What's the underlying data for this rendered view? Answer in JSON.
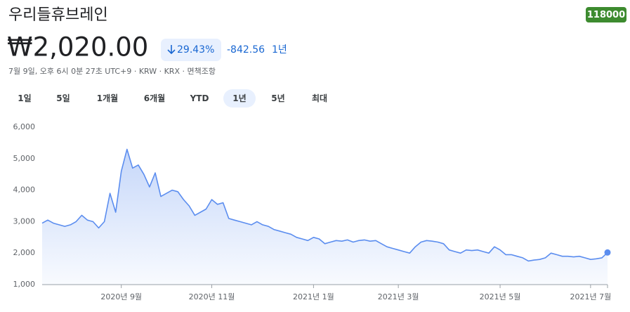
{
  "header": {
    "title": "우리들휴브레인",
    "ticker": "118000",
    "price": "₩2,020.00",
    "change_percent": "29.43%",
    "change_value": "-842.56",
    "change_period": "1년",
    "meta": "7월 9일, 오후 6시 0분 27초 UTC+9 · KRW · KRX · 면책조항",
    "tabs": [
      "1일",
      "5일",
      "1개월",
      "6개월",
      "YTD",
      "1년",
      "5년",
      "최대"
    ],
    "selected_tab": 5
  },
  "chart_data": {
    "type": "line",
    "color": "#5b8def",
    "grid": false,
    "values": [
      2950,
      3050,
      2950,
      2900,
      2850,
      2900,
      3000,
      3200,
      3050,
      3000,
      2800,
      3000,
      3900,
      3300,
      4600,
      5300,
      4700,
      4800,
      4500,
      4100,
      4550,
      3800,
      3900,
      4000,
      3950,
      3700,
      3500,
      3200,
      3300,
      3400,
      3700,
      3550,
      3600,
      3100,
      3050,
      3000,
      2950,
      2900,
      3000,
      2900,
      2850,
      2750,
      2700,
      2650,
      2600,
      2500,
      2450,
      2400,
      2500,
      2450,
      2300,
      2350,
      2400,
      2380,
      2420,
      2350,
      2400,
      2420,
      2380,
      2400,
      2300,
      2200,
      2150,
      2100,
      2050,
      2000,
      2200,
      2350,
      2400,
      2380,
      2350,
      2300,
      2100,
      2050,
      2000,
      2100,
      2080,
      2100,
      2050,
      2000,
      2200,
      2100,
      1950,
      1950,
      1900,
      1850,
      1750,
      1780,
      1800,
      1850,
      2000,
      1950,
      1900,
      1900,
      1880,
      1900,
      1850,
      1800,
      1820,
      1850,
      2020
    ],
    "xlim": [
      0,
      100
    ],
    "xticks": [
      {
        "value": 14,
        "label": "2020년 9월"
      },
      {
        "value": 30,
        "label": "2020년 11월"
      },
      {
        "value": 48,
        "label": "2021년 1월"
      },
      {
        "value": 63,
        "label": "2021년 3월"
      },
      {
        "value": 81,
        "label": "2021년 5월"
      },
      {
        "value": 97,
        "label": "2021년 7월"
      }
    ],
    "ylim": [
      1000,
      6000
    ],
    "yticks": [
      {
        "value": 1000,
        "label": "1,000"
      },
      {
        "value": 2000,
        "label": "2,000"
      },
      {
        "value": 3000,
        "label": "3,000"
      },
      {
        "value": 4000,
        "label": "4,000"
      },
      {
        "value": 5000,
        "label": "5,000"
      },
      {
        "value": 6000,
        "label": "6,000"
      }
    ]
  }
}
